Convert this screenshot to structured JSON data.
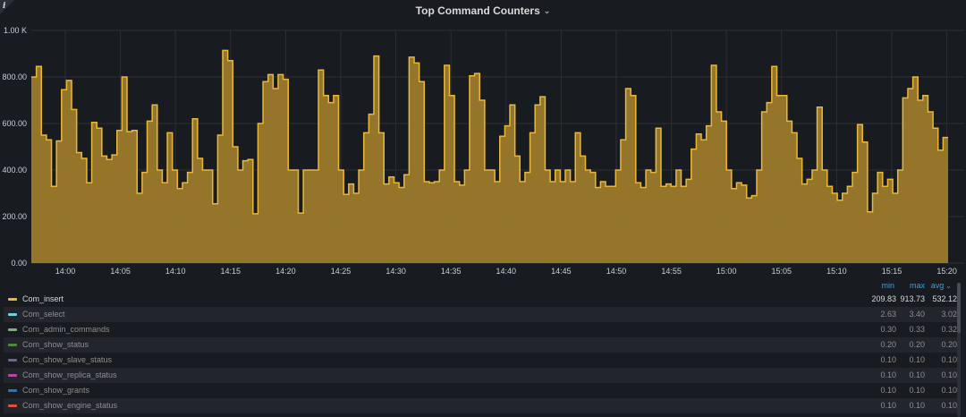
{
  "panel": {
    "title": "Top Command Counters",
    "info_icon": "info-icon",
    "title_icon": "chevron-down-icon"
  },
  "chart_data": {
    "type": "area",
    "step": true,
    "title": "Top Command Counters",
    "xlabel": "",
    "ylabel": "",
    "ylim": [
      0,
      1000
    ],
    "y_ticks": [
      "0.00",
      "200.00",
      "400.00",
      "600.00",
      "800.00",
      "1.00 K"
    ],
    "y_tick_values": [
      0,
      200,
      400,
      600,
      800,
      1000
    ],
    "x_ticks": [
      "14:00",
      "14:05",
      "14:10",
      "14:15",
      "14:20",
      "14:25",
      "14:30",
      "14:35",
      "14:40",
      "14:45",
      "14:50",
      "14:55",
      "15:00",
      "15:05",
      "15:10",
      "15:15",
      "15:20"
    ],
    "grid": true,
    "color": "#eab839",
    "series": [
      {
        "name": "Com_insert",
        "values": [
          800,
          845,
          550,
          530,
          330,
          525,
          745,
          785,
          660,
          475,
          450,
          345,
          605,
          580,
          460,
          445,
          465,
          570,
          800,
          565,
          570,
          300,
          390,
          610,
          680,
          400,
          345,
          560,
          400,
          320,
          345,
          390,
          620,
          450,
          400,
          400,
          255,
          550,
          913.73,
          870,
          500,
          400,
          440,
          445,
          212,
          600,
          780,
          810,
          750,
          810,
          790,
          400,
          400,
          215,
          400,
          400,
          400,
          830,
          720,
          690,
          720,
          400,
          295,
          340,
          300,
          400,
          560,
          640,
          890,
          560,
          340,
          370,
          345,
          325,
          380,
          885,
          860,
          780,
          350,
          345,
          350,
          400,
          850,
          720,
          350,
          335,
          400,
          805,
          815,
          700,
          400,
          400,
          350,
          545,
          590,
          680,
          460,
          350,
          390,
          560,
          680,
          715,
          400,
          350,
          400,
          350,
          400,
          350,
          560,
          460,
          400,
          390,
          325,
          350,
          330,
          330,
          400,
          530,
          750,
          720,
          345,
          325,
          400,
          390,
          580,
          330,
          340,
          330,
          400,
          330,
          360,
          490,
          555,
          530,
          590,
          850,
          650,
          610,
          400,
          320,
          345,
          335,
          280,
          290,
          400,
          650,
          690,
          845,
          720,
          720,
          610,
          560,
          450,
          340,
          360,
          400,
          670,
          400,
          330,
          300,
          270,
          300,
          330,
          390,
          595,
          520,
          220,
          300,
          390,
          330,
          360,
          300,
          400,
          710,
          750,
          800,
          700,
          720,
          650,
          580,
          485,
          540
        ],
        "note_min": "209.83",
        "note_max": "913.73",
        "note_avg": "532.12"
      }
    ],
    "legend": {
      "placement": "bottom",
      "columns": [
        "min",
        "max",
        "avg"
      ],
      "sort_indicator": "chevron-down-icon",
      "rows": [
        {
          "name": "Com_insert",
          "color": "#eab839",
          "min": "209.83",
          "max": "913.73",
          "avg": "532.12"
        },
        {
          "name": "Com_select",
          "color": "#6ed0e0",
          "min": "2.63",
          "max": "3.40",
          "avg": "3.02"
        },
        {
          "name": "Com_admin_commands",
          "color": "#7eb26d",
          "min": "0.30",
          "max": "0.33",
          "avg": "0.32"
        },
        {
          "name": "Com_show_status",
          "color": "#508642",
          "min": "0.20",
          "max": "0.20",
          "avg": "0.20"
        },
        {
          "name": "Com_show_slave_status",
          "color": "#705da0",
          "min": "0.10",
          "max": "0.10",
          "avg": "0.10"
        },
        {
          "name": "Com_show_replica_status",
          "color": "#ba43a9",
          "min": "0.10",
          "max": "0.10",
          "avg": "0.10"
        },
        {
          "name": "Com_show_grants",
          "color": "#1f78c1",
          "min": "0.10",
          "max": "0.10",
          "avg": "0.10"
        },
        {
          "name": "Com_show_engine_status",
          "color": "#e24d42",
          "min": "0.10",
          "max": "0.10",
          "avg": "0.10"
        }
      ]
    }
  }
}
